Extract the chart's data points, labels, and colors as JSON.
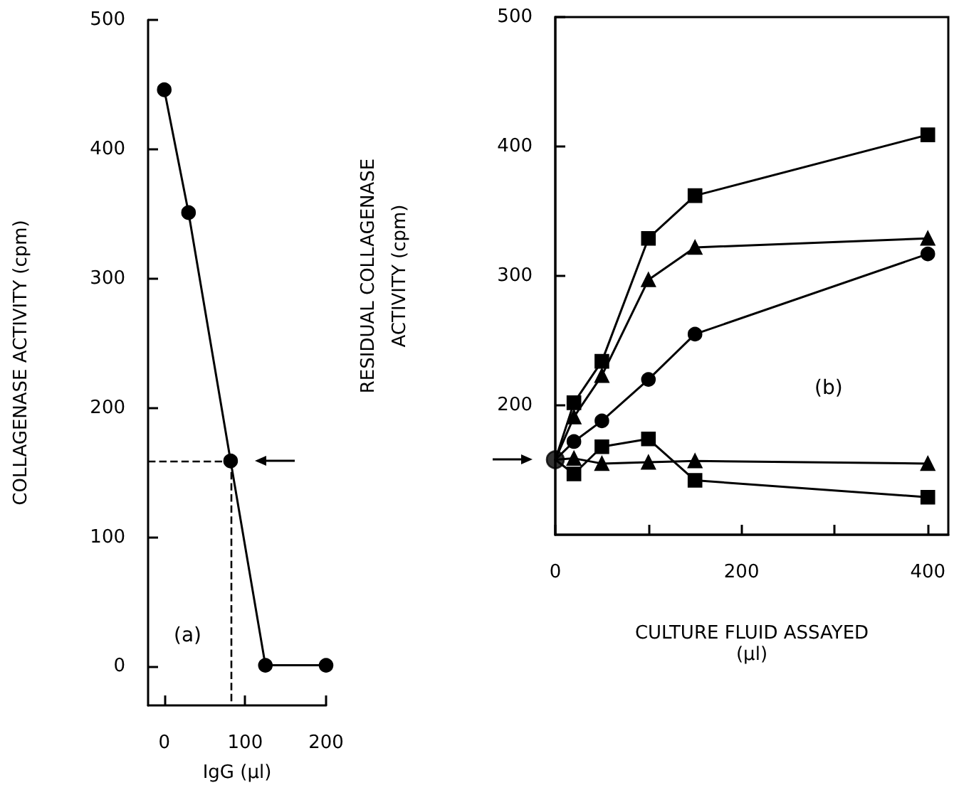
{
  "chart_data": [
    {
      "type": "line",
      "xlabel": "IgG (µl)",
      "ylabel": "COLLAGENASE ACTIVITY (cpm)",
      "xlim": [
        -20,
        200
      ],
      "ylim": [
        -30,
        500
      ],
      "xticks": [
        0,
        100,
        200
      ],
      "yticks": [
        0,
        100,
        200,
        300,
        400,
        500
      ],
      "annotations": [
        "(a)"
      ],
      "series": [
        {
          "color": "#000000",
          "x": [
            0,
            30,
            82,
            125,
            200
          ],
          "values": [
            446,
            351,
            159,
            1,
            1
          ],
          "marker": "circle"
        }
      ],
      "ref_lines": [
        {
          "axis": "y",
          "value": 159,
          "line_style": "dashed",
          "color": "#000000"
        },
        {
          "axis": "x",
          "value": 82,
          "line_style": "dashed",
          "color": "#000000"
        }
      ]
    },
    {
      "type": "line",
      "xlabel": "CULTURE FLUID ASSAYED\n(µl)",
      "ylabel": "RESIDUAL COLLAGENASE\nACTIVITY (cpm)",
      "xlim": [
        0,
        422
      ],
      "ylim": [
        100,
        500
      ],
      "xticks": [
        0,
        {
          "value": 100,
          "label": null
        },
        200,
        {
          "value": 300,
          "label": null
        },
        400
      ],
      "yticks": [
        200,
        300,
        400,
        500
      ],
      "annotations": [
        "(b)"
      ],
      "series": [
        {
          "color": "#000000",
          "x": [
            0,
            20,
            50,
            100,
            150,
            400
          ],
          "values": [
            158,
            202,
            234,
            329,
            362,
            409
          ],
          "marker": "square"
        },
        {
          "color": "#000000",
          "x": [
            0,
            20,
            50,
            100,
            150,
            400
          ],
          "values": [
            158,
            191,
            223,
            297,
            322,
            329
          ],
          "marker": "triangle"
        },
        {
          "color": "#000000",
          "x": [
            0,
            20,
            50,
            100,
            150,
            400
          ],
          "values": [
            158,
            172,
            188,
            220,
            255,
            317
          ],
          "marker": "circle"
        },
        {
          "color": "#000000",
          "x": [
            0,
            20,
            50,
            100,
            150,
            400
          ],
          "values": [
            158,
            147,
            168,
            174,
            142,
            129
          ],
          "marker": "square"
        },
        {
          "color": "#000000",
          "x": [
            0,
            20,
            50,
            100,
            150,
            400
          ],
          "values": [
            158,
            159,
            155,
            156,
            157,
            155
          ],
          "marker": "triangle"
        },
        {
          "type": "scatter",
          "color": "#000000",
          "x": [
            0
          ],
          "values": [
            158
          ],
          "marker": "circle"
        }
      ]
    }
  ]
}
